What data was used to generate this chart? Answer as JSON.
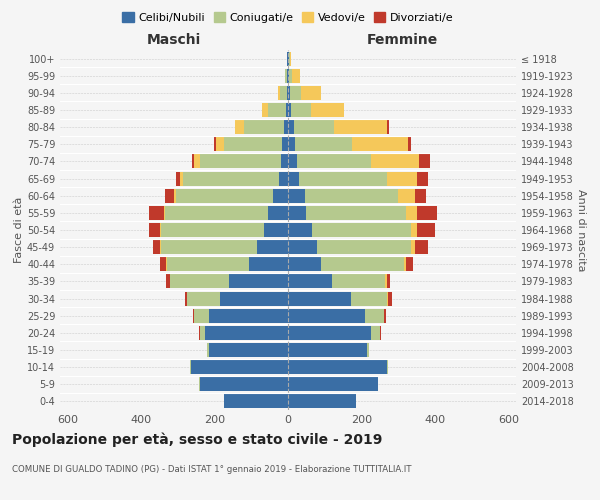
{
  "age_groups": [
    "0-4",
    "5-9",
    "10-14",
    "15-19",
    "20-24",
    "25-29",
    "30-34",
    "35-39",
    "40-44",
    "45-49",
    "50-54",
    "55-59",
    "60-64",
    "65-69",
    "70-74",
    "75-79",
    "80-84",
    "85-89",
    "90-94",
    "95-99",
    "100+"
  ],
  "birth_years": [
    "2014-2018",
    "2009-2013",
    "2004-2008",
    "1999-2003",
    "1994-1998",
    "1989-1993",
    "1984-1988",
    "1979-1983",
    "1974-1978",
    "1969-1973",
    "1964-1968",
    "1959-1963",
    "1954-1958",
    "1949-1953",
    "1944-1948",
    "1939-1943",
    "1934-1938",
    "1929-1933",
    "1924-1928",
    "1919-1923",
    "≤ 1918"
  ],
  "male": {
    "celibe": [
      175,
      240,
      265,
      215,
      225,
      215,
      185,
      160,
      105,
      85,
      65,
      55,
      40,
      25,
      20,
      15,
      10,
      5,
      3,
      2,
      2
    ],
    "coniugato": [
      0,
      2,
      2,
      5,
      15,
      40,
      90,
      160,
      225,
      260,
      280,
      280,
      265,
      260,
      220,
      160,
      110,
      50,
      20,
      5,
      2
    ],
    "vedovo": [
      0,
      0,
      0,
      0,
      0,
      1,
      1,
      2,
      2,
      2,
      2,
      3,
      5,
      10,
      15,
      20,
      25,
      15,
      5,
      2,
      0
    ],
    "divorziato": [
      0,
      0,
      0,
      0,
      2,
      3,
      5,
      10,
      15,
      20,
      30,
      40,
      25,
      10,
      5,
      5,
      0,
      0,
      0,
      0,
      0
    ]
  },
  "female": {
    "nubile": [
      185,
      245,
      270,
      215,
      225,
      210,
      170,
      120,
      90,
      80,
      65,
      50,
      45,
      30,
      25,
      20,
      15,
      8,
      5,
      2,
      2
    ],
    "coniugata": [
      0,
      0,
      2,
      5,
      25,
      50,
      100,
      145,
      225,
      255,
      270,
      270,
      255,
      240,
      200,
      155,
      110,
      55,
      30,
      10,
      3
    ],
    "vedova": [
      0,
      0,
      0,
      0,
      1,
      1,
      2,
      3,
      5,
      10,
      15,
      30,
      45,
      80,
      130,
      150,
      145,
      90,
      55,
      20,
      2
    ],
    "divorziata": [
      0,
      0,
      0,
      0,
      2,
      5,
      10,
      10,
      20,
      35,
      50,
      55,
      30,
      30,
      30,
      10,
      5,
      0,
      0,
      0,
      0
    ]
  },
  "colors": {
    "celibe": "#3a6ea5",
    "coniugato": "#b5c98e",
    "vedovo": "#f5c85a",
    "divorziato": "#c0392b"
  },
  "title": "Popolazione per età, sesso e stato civile - 2019",
  "subtitle": "COMUNE DI GUALDO TADINO (PG) - Dati ISTAT 1° gennaio 2019 - Elaborazione TUTTITALIA.IT",
  "xlabel_left": "Maschi",
  "xlabel_right": "Femmine",
  "ylabel_left": "Fasce di età",
  "ylabel_right": "Anni di nascita",
  "xlim": 620,
  "background_color": "#f5f5f5",
  "legend_labels": [
    "Celibi/Nubili",
    "Coniugati/e",
    "Vedovi/e",
    "Divorziati/e"
  ]
}
